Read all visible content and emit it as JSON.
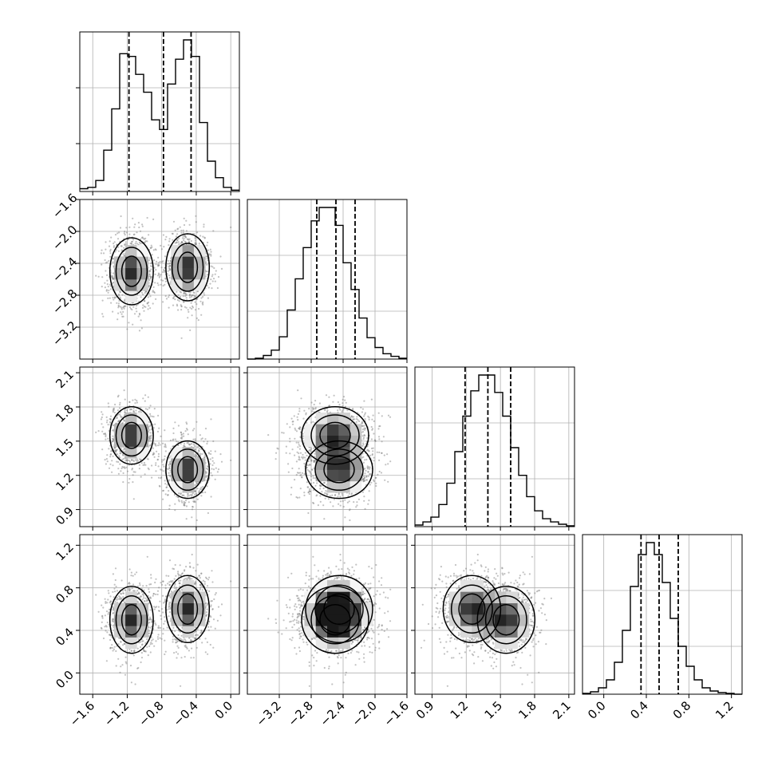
{
  "chart_data": {
    "type": "corner",
    "description_type": "corner plot of 4 parameters (1D histograms on diagonal, 2D density/contours below)",
    "parameters": [
      {
        "index": 0,
        "range": [
          -1.75,
          0.1
        ],
        "ticks": [
          -1.6,
          -1.2,
          -0.8,
          -0.4,
          0.0
        ],
        "tick_labels": [
          "−1.6",
          "−1.2",
          "−0.8",
          "−0.4",
          "0.0"
        ],
        "quantiles": [
          -1.18,
          -0.78,
          -0.46
        ]
      },
      {
        "index": 1,
        "range": [
          -3.6,
          -1.6
        ],
        "ticks": [
          -3.2,
          -2.8,
          -2.4,
          -2.0,
          -1.6
        ],
        "tick_labels": [
          "−3.2",
          "−2.8",
          "−2.4",
          "−2.0",
          "−1.6"
        ],
        "quantiles": [
          -2.73,
          -2.49,
          -2.25
        ]
      },
      {
        "index": 2,
        "range": [
          0.75,
          2.15
        ],
        "ticks": [
          0.9,
          1.2,
          1.5,
          1.8,
          2.1
        ],
        "tick_labels": [
          "0.9",
          "1.2",
          "1.5",
          "1.8",
          "2.1"
        ],
        "quantiles": [
          1.19,
          1.39,
          1.59
        ]
      },
      {
        "index": 3,
        "range": [
          -0.2,
          1.3
        ],
        "ticks": [
          0.0,
          0.4,
          0.8,
          1.2
        ],
        "tick_labels": [
          "0.0",
          "0.4",
          "0.8",
          "1.2"
        ],
        "quantiles": [
          0.35,
          0.52,
          0.7
        ]
      }
    ],
    "histograms": [
      {
        "param": 0,
        "bins": 20,
        "counts": [
          2,
          3,
          8,
          30,
          60,
          100,
          98,
          85,
          72,
          52,
          45,
          78,
          96,
          110,
          98,
          50,
          22,
          10,
          3,
          1
        ]
      },
      {
        "param": 1,
        "bins": 20,
        "counts": [
          0,
          1,
          4,
          10,
          25,
          55,
          90,
          125,
          155,
          170,
          170,
          150,
          108,
          78,
          46,
          24,
          13,
          6,
          3,
          1
        ]
      },
      {
        "param": 2,
        "bins": 20,
        "counts": [
          2,
          6,
          12,
          28,
          55,
          95,
          140,
          172,
          192,
          192,
          170,
          140,
          100,
          65,
          38,
          20,
          10,
          6,
          3,
          1
        ]
      },
      {
        "param": 3,
        "bins": 20,
        "counts": [
          1,
          3,
          8,
          18,
          40,
          80,
          135,
          175,
          190,
          175,
          140,
          95,
          60,
          35,
          18,
          8,
          4,
          2,
          1,
          0
        ]
      }
    ],
    "joint_components": [
      {
        "mean": [
          -1.15,
          -2.5,
          1.55,
          0.5
        ],
        "std": [
          0.12,
          0.2,
          0.12,
          0.15
        ]
      },
      {
        "mean": [
          -0.5,
          -2.45,
          1.25,
          0.6
        ],
        "std": [
          0.12,
          0.2,
          0.12,
          0.15
        ]
      }
    ],
    "grid": true
  }
}
